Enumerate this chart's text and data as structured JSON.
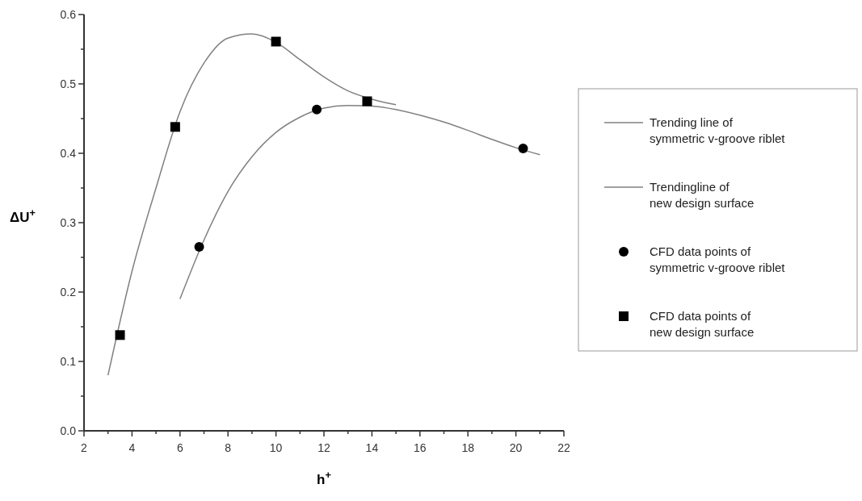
{
  "chart_data": {
    "type": "line",
    "xlabel": "h$^{+}$",
    "ylabel": "ΔU$^{+}$",
    "xlim": [
      2,
      22
    ],
    "ylim": [
      0,
      0.6
    ],
    "xticks": [
      2,
      {
        "value": 3,
        "label": null
      },
      4,
      {
        "value": 5,
        "label": null
      },
      6,
      {
        "value": 7,
        "label": null
      },
      8,
      {
        "value": 9,
        "label": null
      },
      10,
      {
        "value": 11,
        "label": null
      },
      12,
      {
        "value": 13,
        "label": null
      },
      14,
      {
        "value": 15,
        "label": null
      },
      16,
      {
        "value": 17,
        "label": null
      },
      18,
      {
        "value": 19,
        "label": null
      },
      20,
      {
        "value": 21,
        "label": null
      },
      22
    ],
    "yticks": [
      {
        "value": 0,
        "label": "0.0"
      },
      {
        "value": 0.05,
        "label": null
      },
      0.1,
      {
        "value": 0.15,
        "label": null
      },
      0.2,
      {
        "value": 0.25,
        "label": null
      },
      0.3,
      {
        "value": 0.35,
        "label": null
      },
      0.4,
      {
        "value": 0.45,
        "label": null
      },
      0.5,
      {
        "value": 0.55,
        "label": null
      },
      0.6
    ],
    "grid": false,
    "legend": "right",
    "series": [
      {
        "name": "Trending line of\nsymmetric v-groove riblet",
        "color": "#808080",
        "marker": "none",
        "x": [
          6,
          7,
          8,
          9,
          10,
          11,
          12,
          13,
          14,
          15,
          16,
          17,
          18,
          19,
          20,
          21
        ],
        "values": [
          0.19,
          0.275,
          0.345,
          0.395,
          0.43,
          0.452,
          0.465,
          0.469,
          0.468,
          0.463,
          0.455,
          0.445,
          0.433,
          0.42,
          0.408,
          0.398
        ]
      },
      {
        "name": "Trendingline of\nnew design surface",
        "color": "#808080",
        "marker": "none",
        "x": [
          3,
          4,
          5,
          6,
          7,
          8,
          9,
          10,
          11,
          12,
          13,
          14,
          15
        ],
        "values": [
          0.08,
          0.23,
          0.35,
          0.46,
          0.53,
          0.566,
          0.572,
          0.56,
          0.535,
          0.51,
          0.49,
          0.478,
          0.47
        ]
      },
      {
        "name": "CFD data points of\nsymmetric v-groove riblet",
        "type": "scatter",
        "color": "#000000",
        "marker": "circle",
        "x": [
          6.8,
          11.7,
          20.3
        ],
        "values": [
          0.265,
          0.463,
          0.407
        ]
      },
      {
        "name": "CFD data points of\nnew design surface",
        "type": "scatter",
        "color": "#000000",
        "marker": "square",
        "x": [
          3.5,
          5.8,
          10,
          13.8
        ],
        "values": [
          0.138,
          0.438,
          0.561,
          0.475
        ]
      }
    ]
  }
}
